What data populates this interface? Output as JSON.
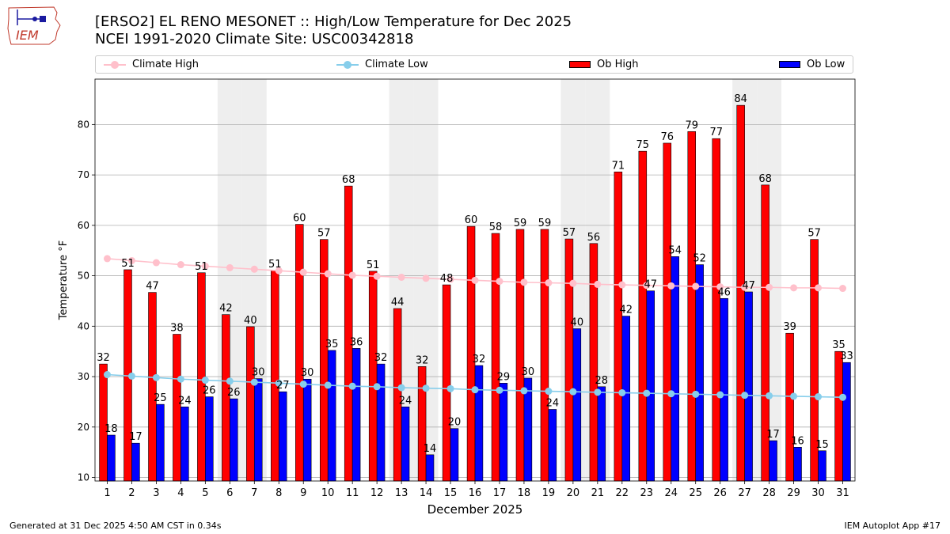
{
  "logo": {
    "text": "IEM"
  },
  "title": {
    "line1": "[ERSO2] EL RENO MESONET :: High/Low Temperature for Dec 2025",
    "line2": "NCEI 1991-2020 Climate Site: USC00342818"
  },
  "legend": {
    "climate_high": "Climate High",
    "climate_low": "Climate Low",
    "ob_high": "Ob High",
    "ob_low": "Ob Low"
  },
  "colors": {
    "climate_high": "#ffc0cb",
    "climate_low": "#87ceeb",
    "ob_high": "#ff0000",
    "ob_low": "#0000ff",
    "weekend_shade": "#eeeeee",
    "grid": "#b0b0b0"
  },
  "footer": {
    "left": "Generated at 31 Dec 2025 4:50 AM CST in 0.34s",
    "right": "IEM Autoplot App #17"
  },
  "chart_data": {
    "type": "bar",
    "xlabel": "December 2025",
    "ylabel": "Temperature °F",
    "ylim": [
      9.3,
      89
    ],
    "yticks": [
      10,
      20,
      30,
      40,
      50,
      60,
      70,
      80
    ],
    "grid": "horizontal",
    "legend_position": "top",
    "categories": [
      "1",
      "2",
      "3",
      "4",
      "5",
      "6",
      "7",
      "8",
      "9",
      "10",
      "11",
      "12",
      "13",
      "14",
      "15",
      "16",
      "17",
      "18",
      "19",
      "20",
      "21",
      "22",
      "23",
      "24",
      "25",
      "26",
      "27",
      "28",
      "29",
      "30",
      "31"
    ],
    "shaded_days": [
      6,
      7,
      13,
      14,
      20,
      21,
      27,
      28
    ],
    "series": [
      {
        "name": "Ob High",
        "kind": "bar",
        "values": [
          32.5,
          51.2,
          46.7,
          38.4,
          50.6,
          42.3,
          39.9,
          51.0,
          60.2,
          57.2,
          67.8,
          50.9,
          43.5,
          32.0,
          48.2,
          59.8,
          58.4,
          59.2,
          59.2,
          57.3,
          56.4,
          70.6,
          74.7,
          76.3,
          78.6,
          77.2,
          83.8,
          68.0,
          38.6,
          57.2,
          35.0
        ],
        "labels": [
          "32",
          "51",
          "47",
          "38",
          "51",
          "42",
          "40",
          "51",
          "60",
          "57",
          "68",
          "51",
          "44",
          "32",
          "48",
          "60",
          "58",
          "59",
          "59",
          "57",
          "56",
          "71",
          "75",
          "76",
          "79",
          "77",
          "84",
          "68",
          "39",
          "57",
          "35"
        ]
      },
      {
        "name": "Ob Low",
        "kind": "bar",
        "values": [
          18.4,
          16.8,
          24.5,
          24.0,
          26.0,
          25.6,
          29.6,
          27.0,
          29.5,
          35.2,
          35.6,
          32.5,
          24.0,
          14.5,
          19.7,
          32.2,
          28.7,
          29.7,
          23.5,
          39.5,
          28.0,
          42.0,
          47.0,
          53.8,
          52.2,
          45.5,
          46.8,
          17.3,
          16.0,
          15.3,
          32.8
        ],
        "labels": [
          "18",
          "17",
          "25",
          "24",
          "26",
          "26",
          "30",
          "27",
          "30",
          "35",
          "36",
          "32",
          "24",
          "14",
          "20",
          "32",
          "29",
          "30",
          "24",
          "40",
          "28",
          "42",
          "47",
          "54",
          "52",
          "46",
          "47",
          "17",
          "16",
          "15",
          "33"
        ]
      },
      {
        "name": "Climate High",
        "kind": "line",
        "values": [
          53.4,
          53.0,
          52.6,
          52.2,
          51.9,
          51.6,
          51.3,
          51.0,
          50.7,
          50.4,
          50.1,
          49.9,
          49.7,
          49.5,
          49.3,
          49.1,
          48.9,
          48.7,
          48.6,
          48.5,
          48.3,
          48.2,
          48.1,
          48.0,
          47.9,
          47.8,
          47.7,
          47.7,
          47.6,
          47.6,
          47.5
        ]
      },
      {
        "name": "Climate Low",
        "kind": "line",
        "values": [
          30.4,
          30.1,
          29.8,
          29.5,
          29.3,
          29.1,
          28.9,
          28.7,
          28.5,
          28.3,
          28.1,
          28.0,
          27.8,
          27.7,
          27.6,
          27.4,
          27.3,
          27.2,
          27.1,
          27.0,
          26.9,
          26.8,
          26.7,
          26.6,
          26.5,
          26.4,
          26.3,
          26.2,
          26.1,
          26.0,
          25.9
        ]
      }
    ]
  }
}
